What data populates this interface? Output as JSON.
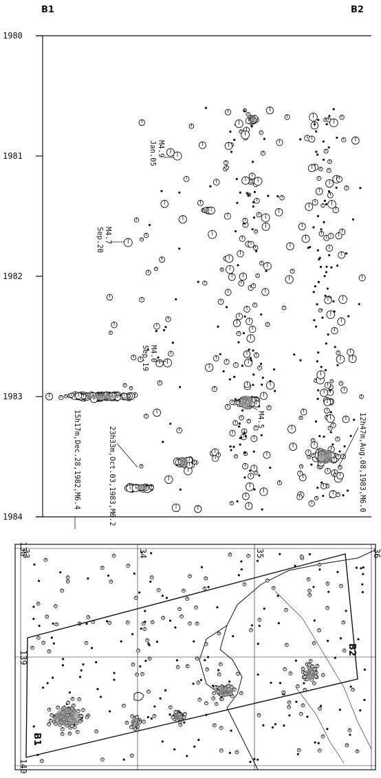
{
  "figure": {
    "label_b1": "B1",
    "label_b2": "B2"
  },
  "chart_data": [
    {
      "type": "scatter",
      "title": "",
      "time_axis": {
        "range": [
          1980,
          1984
        ],
        "ticks": [
          "1980",
          "1981",
          "1982",
          "1983",
          "1984"
        ]
      },
      "annotations": [
        {
          "text": "M4.9",
          "date": "Jan.05",
          "time": 1981.0
        },
        {
          "text": "M4.7",
          "date": "Sep.20",
          "time": 1981.72
        },
        {
          "text": "M4.0",
          "date": "Sep.19",
          "time": 1982.72
        },
        {
          "text": "15h17m,Dec.28,1982,M6.4",
          "time": 1983.0
        },
        {
          "text": "23h33m,Oct.03,1983,M6.2",
          "time": 1983.76
        },
        {
          "text": "M4.5",
          "time": 1983.1
        },
        {
          "text": "12h47m,Aug.08,1983,M6.0",
          "time": 1983.6
        }
      ],
      "clusters": [
        {
          "time": 1983.0,
          "pos": 0.18,
          "spread_t": 0.015,
          "spread_p": 0.09,
          "count": 140
        },
        {
          "time": 1983.76,
          "pos": 0.3,
          "spread_t": 0.012,
          "spread_p": 0.035,
          "count": 45
        },
        {
          "time": 1983.55,
          "pos": 0.43,
          "spread_t": 0.025,
          "spread_p": 0.025,
          "count": 40
        },
        {
          "time": 1983.05,
          "pos": 0.62,
          "spread_t": 0.04,
          "spread_p": 0.035,
          "count": 50
        },
        {
          "time": 1983.5,
          "pos": 0.86,
          "spread_t": 0.04,
          "spread_p": 0.04,
          "count": 55
        },
        {
          "time": 1980.7,
          "pos": 0.64,
          "spread_t": 0.02,
          "spread_p": 0.015,
          "count": 18
        },
        {
          "time": 1981.45,
          "pos": 0.5,
          "spread_t": 0.01,
          "spread_p": 0.015,
          "count": 12
        }
      ]
    },
    {
      "type": "scatter",
      "title": "",
      "lon_axis": {
        "range": [
          138,
          140
        ],
        "ticks": [
          "138",
          "139",
          "140"
        ]
      },
      "lat_axis": {
        "range": [
          33,
          36
        ],
        "ticks": [
          "33",
          "34",
          "35",
          "36"
        ]
      },
      "box_labels": [
        "B1",
        "B2"
      ]
    }
  ]
}
